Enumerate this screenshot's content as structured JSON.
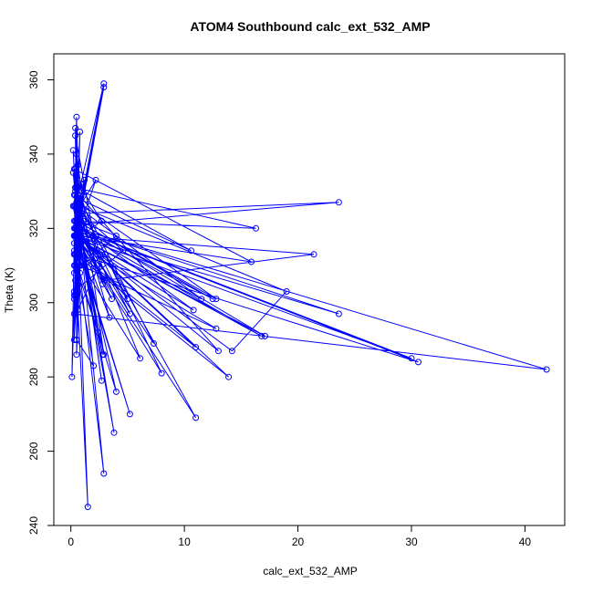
{
  "chart_data": {
    "type": "scatter",
    "title": "ATOM4 Southbound calc_ext_532_AMP",
    "xlabel": "calc_ext_532_AMP",
    "ylabel": "Theta (K)",
    "xlim": [
      -1.5,
      43.5
    ],
    "ylim": [
      240,
      367
    ],
    "x_ticks": [
      0,
      10,
      20,
      30,
      40
    ],
    "y_ticks": [
      240,
      260,
      280,
      300,
      320,
      340,
      360
    ],
    "grid": false,
    "legend": "none",
    "connected": true,
    "color": "#0000ff",
    "points": [
      [
        0.2,
        341
      ],
      [
        0.4,
        329
      ],
      [
        0.3,
        318
      ],
      [
        2.9,
        359
      ],
      [
        0.5,
        327
      ],
      [
        0.8,
        318
      ],
      [
        0.6,
        305
      ],
      [
        1.2,
        333
      ],
      [
        0.3,
        322
      ],
      [
        16.3,
        320
      ],
      [
        0.4,
        331
      ],
      [
        0.6,
        298
      ],
      [
        3.0,
        313
      ],
      [
        8.0,
        281
      ],
      [
        0.5,
        318
      ],
      [
        0.9,
        315
      ],
      [
        0.4,
        347
      ],
      [
        0.6,
        324
      ],
      [
        23.6,
        327
      ],
      [
        0.5,
        321
      ],
      [
        0.9,
        310
      ],
      [
        12.8,
        293
      ],
      [
        0.3,
        316
      ],
      [
        0.6,
        327
      ],
      [
        0.8,
        308
      ],
      [
        0.4,
        336
      ],
      [
        0.7,
        325
      ],
      [
        2.8,
        305
      ],
      [
        0.4,
        345
      ],
      [
        0.5,
        320
      ],
      [
        7.3,
        289
      ],
      [
        0.6,
        329
      ],
      [
        1.0,
        332
      ],
      [
        0.3,
        313
      ],
      [
        0.7,
        319
      ],
      [
        0.5,
        340
      ],
      [
        2.9,
        286
      ],
      [
        0.6,
        322
      ],
      [
        4.0,
        318
      ],
      [
        0.3,
        308
      ],
      [
        0.7,
        328
      ],
      [
        10.6,
        314
      ],
      [
        0.5,
        331
      ],
      [
        1.1,
        322
      ],
      [
        0.4,
        297
      ],
      [
        0.6,
        324
      ],
      [
        3.8,
        265
      ],
      [
        0.2,
        326
      ],
      [
        0.8,
        320
      ],
      [
        2.7,
        279
      ],
      [
        0.4,
        331
      ],
      [
        0.6,
        322
      ],
      [
        0.5,
        286
      ],
      [
        0.9,
        316
      ],
      [
        3.4,
        296
      ],
      [
        0.3,
        329
      ],
      [
        0.6,
        313
      ],
      [
        30.6,
        284
      ],
      [
        0.4,
        320
      ],
      [
        0.7,
        318
      ],
      [
        2.6,
        313
      ],
      [
        0.2,
        335
      ],
      [
        0.5,
        325
      ],
      [
        4.6,
        314
      ],
      [
        0.3,
        303
      ],
      [
        0.7,
        327
      ],
      [
        12.8,
        301
      ],
      [
        0.5,
        322
      ],
      [
        0.4,
        302
      ],
      [
        0.9,
        318
      ],
      [
        3.0,
        306
      ],
      [
        21.4,
        313
      ],
      [
        0.4,
        318
      ],
      [
        0.6,
        337
      ],
      [
        0.5,
        318
      ],
      [
        11.0,
        288
      ],
      [
        0.3,
        314
      ],
      [
        0.7,
        332
      ],
      [
        2.7,
        322
      ],
      [
        0.5,
        317
      ],
      [
        0.6,
        320
      ],
      [
        41.9,
        282
      ],
      [
        0.3,
        297
      ],
      [
        0.8,
        310
      ],
      [
        0.5,
        321
      ],
      [
        5.2,
        297
      ],
      [
        0.4,
        326
      ],
      [
        0.7,
        318
      ],
      [
        15.9,
        311
      ],
      [
        0.3,
        336
      ],
      [
        0.6,
        316
      ],
      [
        0.5,
        327
      ],
      [
        2.4,
        292
      ],
      [
        0.4,
        310
      ],
      [
        0.7,
        320
      ],
      [
        12.5,
        301
      ],
      [
        0.5,
        322
      ],
      [
        0.3,
        290
      ],
      [
        0.8,
        318
      ],
      [
        0.6,
        326
      ],
      [
        6.1,
        285
      ],
      [
        0.4,
        313
      ],
      [
        0.7,
        320
      ],
      [
        23.6,
        297
      ],
      [
        0.5,
        318
      ],
      [
        0.3,
        302
      ],
      [
        0.8,
        326
      ],
      [
        0.6,
        321
      ],
      [
        3.6,
        301
      ],
      [
        0.4,
        318
      ],
      [
        5.0,
        301
      ],
      [
        0.7,
        327
      ],
      [
        0.5,
        318
      ],
      [
        2.9,
        358
      ],
      [
        0.4,
        318
      ],
      [
        0.6,
        324
      ],
      [
        0.5,
        290
      ],
      [
        0.8,
        316
      ],
      [
        2.8,
        286
      ],
      [
        0.4,
        322
      ],
      [
        0.7,
        320
      ],
      [
        4.0,
        276
      ],
      [
        0.3,
        313
      ],
      [
        0.6,
        327
      ],
      [
        0.5,
        318
      ],
      [
        13.0,
        287
      ],
      [
        0.4,
        330
      ],
      [
        0.7,
        321
      ],
      [
        0.5,
        318
      ],
      [
        0.3,
        301
      ],
      [
        0.6,
        325
      ],
      [
        2.9,
        254
      ],
      [
        0.4,
        318
      ],
      [
        0.7,
        321
      ],
      [
        0.5,
        326
      ],
      [
        11.5,
        301
      ],
      [
        0.3,
        318
      ],
      [
        0.6,
        322
      ],
      [
        0.8,
        313
      ],
      [
        5.2,
        270
      ],
      [
        0.4,
        318
      ],
      [
        0.7,
        326
      ],
      [
        0.5,
        321
      ],
      [
        10.8,
        298
      ],
      [
        0.3,
        318
      ],
      [
        0.6,
        325
      ],
      [
        0.4,
        306
      ],
      [
        0.8,
        320
      ],
      [
        0.5,
        326
      ],
      [
        1.5,
        245
      ],
      [
        0.3,
        318
      ],
      [
        0.7,
        322
      ],
      [
        0.5,
        320
      ],
      [
        30.0,
        285
      ],
      [
        0.4,
        318
      ],
      [
        0.6,
        326
      ],
      [
        0.5,
        290
      ],
      [
        2.0,
        283
      ],
      [
        0.3,
        313
      ],
      [
        0.7,
        321
      ],
      [
        0.5,
        318
      ],
      [
        16.8,
        291
      ],
      [
        0.4,
        320
      ],
      [
        0.6,
        326
      ],
      [
        0.8,
        318
      ],
      [
        0.3,
        310
      ],
      [
        0.6,
        325
      ],
      [
        2.2,
        333
      ],
      [
        0.5,
        318
      ],
      [
        0.4,
        320
      ],
      [
        0.7,
        326
      ],
      [
        11.0,
        269
      ],
      [
        0.5,
        318
      ],
      [
        0.3,
        313
      ],
      [
        0.6,
        321
      ],
      [
        17.1,
        291
      ],
      [
        0.4,
        318
      ],
      [
        0.7,
        326
      ],
      [
        19.0,
        303
      ],
      [
        14.2,
        287
      ],
      [
        0.5,
        318
      ],
      [
        0.3,
        320
      ],
      [
        0.6,
        318
      ],
      [
        13.9,
        280
      ],
      [
        0.4,
        313
      ],
      [
        0.7,
        321
      ],
      [
        0.5,
        318
      ],
      [
        0.3,
        326
      ],
      [
        0.6,
        318
      ],
      [
        0.5,
        320
      ],
      [
        0.1,
        280
      ],
      [
        0.3,
        318
      ],
      [
        0.6,
        322
      ],
      [
        0.8,
        346
      ],
      [
        0.4,
        318
      ],
      [
        0.7,
        320
      ],
      [
        0.5,
        350
      ],
      [
        0.3,
        318
      ]
    ]
  }
}
